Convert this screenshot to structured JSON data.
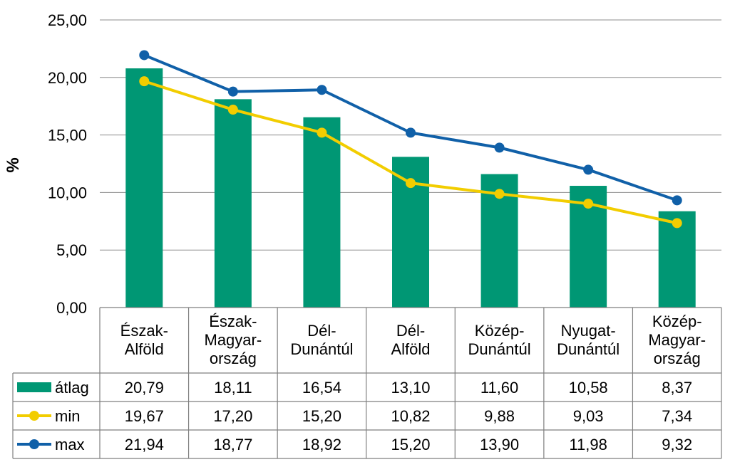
{
  "chart_data": {
    "type": "bar",
    "ylabel": "%",
    "ylim": [
      0,
      25
    ],
    "yticks": [
      "0,00",
      "5,00",
      "10,00",
      "15,00",
      "20,00",
      "25,00"
    ],
    "ytick_values": [
      0,
      5,
      10,
      15,
      20,
      25
    ],
    "grid": true,
    "legend": "data-table",
    "categories": [
      [
        "Észak-",
        "Alföld"
      ],
      [
        "Észak-",
        "Magyar-",
        "ország"
      ],
      [
        "Dél-",
        "Dunántúl"
      ],
      [
        "Dél-",
        "Alföld"
      ],
      [
        "Közép-",
        "Dunántúl"
      ],
      [
        "Nyugat-",
        "Dunántúl"
      ],
      [
        "Közép-",
        "Magyar-",
        "ország"
      ]
    ],
    "series": [
      {
        "name": "átlag",
        "type": "bar",
        "color": "#009774",
        "values": [
          20.79,
          18.11,
          16.54,
          13.1,
          11.6,
          10.58,
          8.37
        ],
        "labels": [
          "20,79",
          "18,11",
          "16,54",
          "13,10",
          "11,60",
          "10,58",
          "8,37"
        ]
      },
      {
        "name": "min",
        "type": "line",
        "color": "#f2cd00",
        "values": [
          19.67,
          17.2,
          15.2,
          10.82,
          9.88,
          9.03,
          7.34
        ],
        "labels": [
          "19,67",
          "17,20",
          "15,20",
          "10,82",
          "9,88",
          "9,03",
          "7,34"
        ]
      },
      {
        "name": "max",
        "type": "line",
        "color": "#1060a8",
        "values": [
          21.94,
          18.77,
          18.92,
          15.2,
          13.9,
          11.98,
          9.32
        ],
        "labels": [
          "21,94",
          "18,77",
          "18,92",
          "15,20",
          "13,90",
          "11,98",
          "9,32"
        ]
      }
    ]
  }
}
